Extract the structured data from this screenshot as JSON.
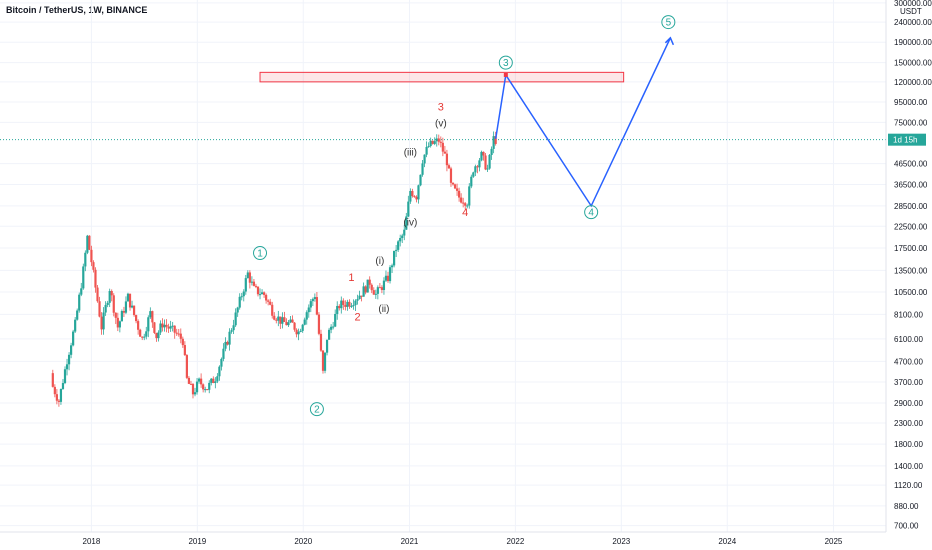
{
  "header": {
    "title": "Bitcoin / TetherUS, 1W, BINANCE"
  },
  "price_axis": {
    "unit": "USDT",
    "ticks": [
      "300000.00",
      "240000.00",
      "190000.00",
      "150000.00",
      "120000.00",
      "95000.00",
      "75000.00",
      "46500.00",
      "36500.00",
      "28500.00",
      "22500.00",
      "17500.00",
      "13500.00",
      "10500.00",
      "8100.00",
      "6100.00",
      "4700.00",
      "3700.00",
      "2900.00",
      "2300.00",
      "1800.00",
      "1400.00",
      "1120.00",
      "880.00",
      "700.00"
    ],
    "current_label": "1d 15h"
  },
  "time_axis": {
    "ticks": [
      "2018",
      "2019",
      "2020",
      "2021",
      "2022",
      "2023",
      "2024",
      "2025"
    ]
  },
  "chart_data": {
    "type": "candlestick",
    "scale": "log",
    "ylim": [
      650,
      310000
    ],
    "xlim": [
      "2017-02-20",
      "2025-07-01"
    ],
    "colors": {
      "up": "#26a69a",
      "down": "#ef5350",
      "projection": "#2962ff",
      "zone": "#f23645",
      "circle_label": "#26a69a",
      "red_label": "#e53935"
    },
    "price_path": [
      [
        "2017-08-14",
        4100
      ],
      [
        "2017-08-21",
        3500
      ],
      [
        "2017-09-11",
        2970
      ],
      [
        "2017-10-09",
        4800
      ],
      [
        "2017-11-06",
        7200
      ],
      [
        "2017-12-04",
        13500
      ],
      [
        "2017-12-18",
        19800
      ],
      [
        "2018-01-01",
        15000
      ],
      [
        "2018-02-05",
        7000
      ],
      [
        "2018-03-05",
        11000
      ],
      [
        "2018-04-02",
        7000
      ],
      [
        "2018-05-07",
        9900
      ],
      [
        "2018-06-25",
        6100
      ],
      [
        "2018-07-23",
        8200
      ],
      [
        "2018-08-13",
        6300
      ],
      [
        "2018-09-03",
        7300
      ],
      [
        "2018-10-15",
        6600
      ],
      [
        "2018-11-12",
        6000
      ],
      [
        "2018-11-26",
        3800
      ],
      [
        "2018-12-17",
        3250
      ],
      [
        "2019-01-07",
        3700
      ],
      [
        "2019-02-04",
        3450
      ],
      [
        "2019-03-04",
        3900
      ],
      [
        "2019-04-01",
        5200
      ],
      [
        "2019-05-13",
        8000
      ],
      [
        "2019-06-24",
        13000
      ],
      [
        "2019-07-15",
        10800
      ],
      [
        "2019-08-19",
        10200
      ],
      [
        "2019-09-23",
        8100
      ],
      [
        "2019-10-21",
        7400
      ],
      [
        "2019-11-25",
        7200
      ],
      [
        "2019-12-16",
        6600
      ],
      [
        "2020-01-06",
        8000
      ],
      [
        "2020-02-10",
        10200
      ],
      [
        "2020-03-09",
        4100
      ],
      [
        "2020-03-23",
        6200
      ],
      [
        "2020-05-04",
        9000
      ],
      [
        "2020-06-15",
        9400
      ],
      [
        "2020-07-20",
        10400
      ],
      [
        "2020-08-17",
        11800
      ],
      [
        "2020-09-07",
        10200
      ],
      [
        "2020-10-19",
        12400
      ],
      [
        "2020-11-16",
        17500
      ],
      [
        "2020-12-14",
        21000
      ],
      [
        "2021-01-04",
        34000
      ],
      [
        "2021-01-25",
        32000
      ],
      [
        "2021-02-15",
        49000
      ],
      [
        "2021-03-08",
        57000
      ],
      [
        "2021-04-12",
        61000
      ],
      [
        "2021-05-10",
        48000
      ],
      [
        "2021-05-24",
        36000
      ],
      [
        "2021-06-21",
        31500
      ],
      [
        "2021-07-19",
        30000
      ],
      [
        "2021-08-09",
        44000
      ],
      [
        "2021-09-06",
        51000
      ],
      [
        "2021-09-27",
        43500
      ],
      [
        "2021-10-18",
        62000
      ],
      [
        "2021-10-25",
        61400
      ]
    ],
    "projection": [
      [
        "2021-10-25",
        62000
      ],
      [
        "2021-11-29",
        130000
      ],
      [
        "2022-09-19",
        28500
      ],
      [
        "2023-06-19",
        200000
      ]
    ],
    "resistance_zone": {
      "x": [
        "2019-08-05",
        "2023-01-09"
      ],
      "y": [
        120000,
        134000
      ]
    },
    "current_price": 61400,
    "labels_circled": [
      {
        "text": "1",
        "x": "2019-08-05",
        "y": 16500
      },
      {
        "text": "2",
        "x": "2020-02-17",
        "y": 2700
      },
      {
        "text": "3",
        "x": "2021-11-29",
        "y": 150000
      },
      {
        "text": "4",
        "x": "2022-09-19",
        "y": 26500
      },
      {
        "text": "5",
        "x": "2023-06-12",
        "y": 240000
      }
    ],
    "labels_red": [
      {
        "text": "1",
        "x": "2020-06-15",
        "y": 12500
      },
      {
        "text": "2",
        "x": "2020-07-06",
        "y": 7900
      },
      {
        "text": "3",
        "x": "2021-04-19",
        "y": 90000
      },
      {
        "text": "4",
        "x": "2021-07-12",
        "y": 26500
      }
    ],
    "labels_roman": [
      {
        "text": "(i)",
        "x": "2020-09-21",
        "y": 15000
      },
      {
        "text": "(ii)",
        "x": "2020-10-05",
        "y": 8600
      },
      {
        "text": "(iii)",
        "x": "2021-01-04",
        "y": 53000
      },
      {
        "text": "(iv)",
        "x": "2021-01-04",
        "y": 23500
      },
      {
        "text": "(v)",
        "x": "2021-04-19",
        "y": 74000
      }
    ]
  }
}
